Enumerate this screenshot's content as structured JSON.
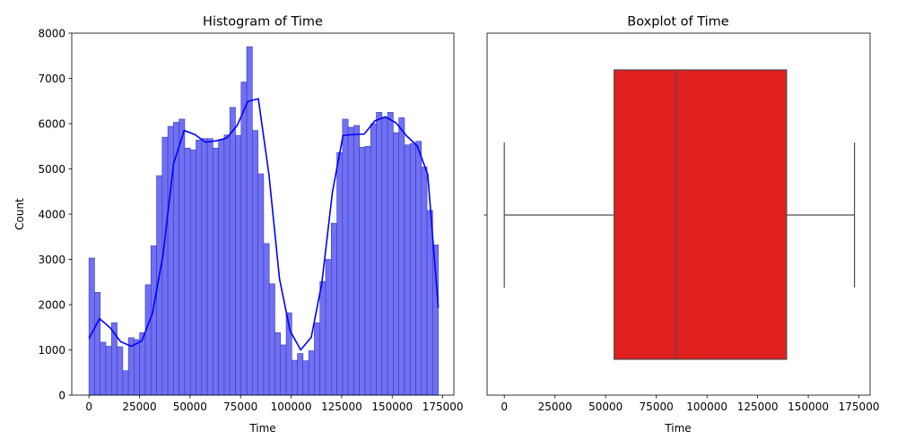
{
  "chart_data": [
    {
      "type": "histogram",
      "title": "Histogram of Time",
      "xlabel": "Time",
      "ylabel": "Count",
      "xlim": [
        -8500,
        180500
      ],
      "ylim": [
        0,
        8000
      ],
      "xticks": [
        0,
        25000,
        50000,
        75000,
        100000,
        125000,
        150000,
        175000
      ],
      "yticks": [
        0,
        1000,
        2000,
        3000,
        4000,
        5000,
        6000,
        7000,
        8000
      ],
      "bin_range": [
        0,
        172800
      ],
      "bar_color": "#7070f5",
      "edge_color": "#3a3ab0",
      "kde_color": "#0000ff",
      "counts": [
        3030,
        2270,
        1170,
        1080,
        1600,
        1070,
        540,
        1270,
        1230,
        1380,
        2440,
        3300,
        4850,
        5700,
        5940,
        6030,
        6100,
        5460,
        5420,
        5640,
        5670,
        5670,
        5460,
        5640,
        5750,
        6360,
        5740,
        6920,
        7700,
        5850,
        4890,
        3350,
        2460,
        1380,
        1110,
        1820,
        770,
        920,
        760,
        980,
        1600,
        2510,
        3000,
        3800,
        5360,
        6100,
        5920,
        5960,
        5480,
        5500,
        6000,
        6250,
        6140,
        6250,
        5800,
        6130,
        5530,
        5560,
        5610,
        5040,
        4080,
        3320
      ],
      "kde_values": [
        1250,
        1690,
        1490,
        1180,
        1080,
        1200,
        1810,
        3100,
        5120,
        5850,
        5760,
        5590,
        5620,
        5680,
        5960,
        6490,
        6550,
        4880,
        2570,
        1420,
        1000,
        1280,
        2480,
        4490,
        5740,
        5760,
        5770,
        6060,
        6150,
        6020,
        5730,
        5510,
        4880,
        1930
      ]
    },
    {
      "type": "boxplot",
      "title": "Boxplot of Time",
      "xlabel": "Time",
      "xlim": [
        -8500,
        180500
      ],
      "xticks": [
        0,
        25000,
        50000,
        75000,
        100000,
        125000,
        150000,
        175000
      ],
      "min": 0,
      "q1": 54200,
      "median": 84700,
      "q3": 139300,
      "max": 172792,
      "box_color": "#e01f1f",
      "line_color": "#4d4d4d"
    }
  ]
}
